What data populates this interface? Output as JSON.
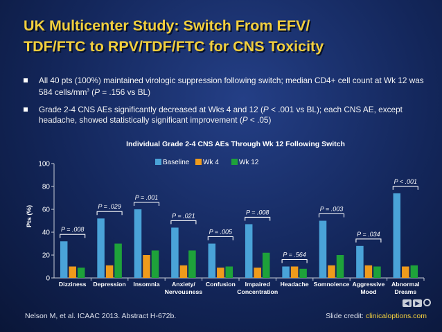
{
  "slide": {
    "title_line1": "UK Multicenter Study: Switch From EFV/",
    "title_line2": "TDF/FTC to RPV/TDF/FTC for CNS Toxicity",
    "bullet1": {
      "a": "All 40 pts (100%) maintained virologic suppression following switch; median CD4+ cell count at Wk 12 was 584 cells/mm",
      "sup": "3",
      "b": " (",
      "p": "P",
      "c": " = .156 vs BL)"
    },
    "bullet2": {
      "a": "Grade 2-4 CNS AEs significantly decreased at Wks 4 and 12 (",
      "p1": "P",
      "b": " < .001 vs BL); each CNS AE, except headache, showed statistically significant improvement (",
      "p2": "P",
      "c": " < .05)"
    },
    "citation": "Nelson M, et al. ICAAC 2013. Abstract H-672b.",
    "credit_label": "Slide credit: ",
    "credit_link": "clinicaloptions.com"
  },
  "chart_data": {
    "type": "bar",
    "title": "Individual Grade 2-4 CNS AEs Through Wk 12 Following Switch",
    "ylabel": "Pts (%)",
    "xlabel": "",
    "ylim": [
      0,
      100
    ],
    "yticks": [
      0,
      20,
      40,
      60,
      80,
      100
    ],
    "legend_position": "top-center",
    "categories": [
      [
        "Dizziness"
      ],
      [
        "Depression"
      ],
      [
        "Insomnia"
      ],
      [
        "Anxiety/",
        "Nervousness"
      ],
      [
        "Confusion"
      ],
      [
        "Impaired",
        "Concentration"
      ],
      [
        "Headache"
      ],
      [
        "Somnolence"
      ],
      [
        "Aggressive",
        "Mood"
      ],
      [
        "Abnormal",
        "Dreams"
      ]
    ],
    "series": [
      {
        "name": "Baseline",
        "color": "#4aa3d8",
        "values": [
          32,
          52,
          60,
          44,
          30,
          47,
          10,
          50,
          28,
          74
        ]
      },
      {
        "name": "Wk 4",
        "color": "#ef9b1c",
        "values": [
          10,
          11,
          20,
          11,
          9,
          9,
          10,
          11,
          11,
          10
        ]
      },
      {
        "name": "Wk 12",
        "color": "#1ea23a",
        "values": [
          9,
          30,
          24,
          24,
          10,
          22,
          8,
          20,
          10,
          11
        ]
      }
    ],
    "pvalues": [
      "P = .008",
      "P = .029",
      "P = .001",
      "P = .021",
      "P = .005",
      "P = .008",
      "P = .564",
      "P = .003",
      "P = .034",
      "P < .001"
    ]
  }
}
